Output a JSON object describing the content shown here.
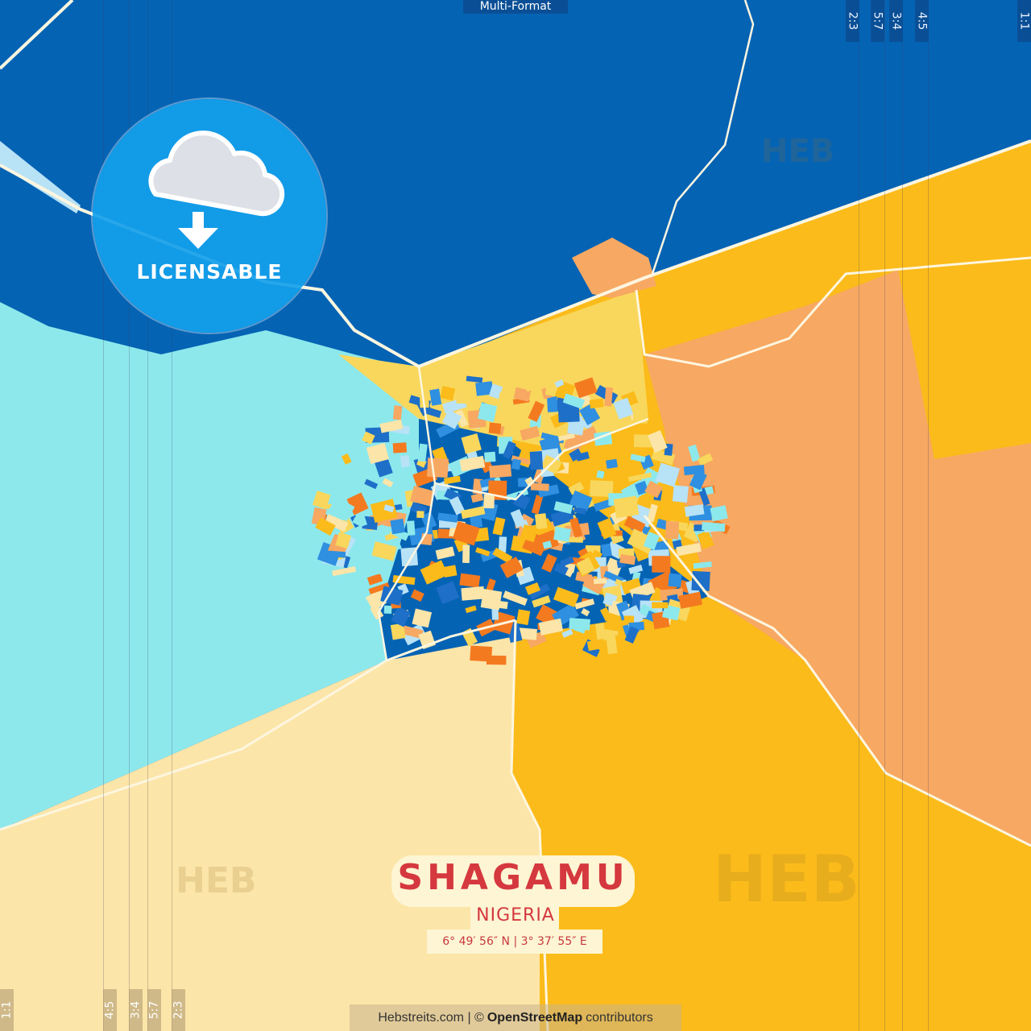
{
  "top_tab": "Multi-Format",
  "ratio_tabs_top": [
    "2:3",
    "5:7",
    "3:4",
    "4:5",
    "1:1"
  ],
  "ratio_tabs_bottom": [
    "1:1",
    "4:5",
    "3:4",
    "5:7",
    "2:3"
  ],
  "badge": {
    "label": "LICENSABLE",
    "icon": "cloud-download-icon"
  },
  "title": {
    "city": "SHAGAMU",
    "country": "NIGERIA",
    "coordinates": "6° 49′ 56″ N | 3° 37′ 55″ E"
  },
  "footer": {
    "site": "Hebstreits.com | ©",
    "osm": "OpenStreetMap",
    "suffix": "contributors"
  },
  "watermark": "HEB",
  "colors": {
    "dark_blue": "#0563b4",
    "cyan": "#8de8ec",
    "beige": "#fce5a8",
    "yellow": "#fbbb1a",
    "orange": "#f7a862",
    "title_red": "#d5383f"
  }
}
